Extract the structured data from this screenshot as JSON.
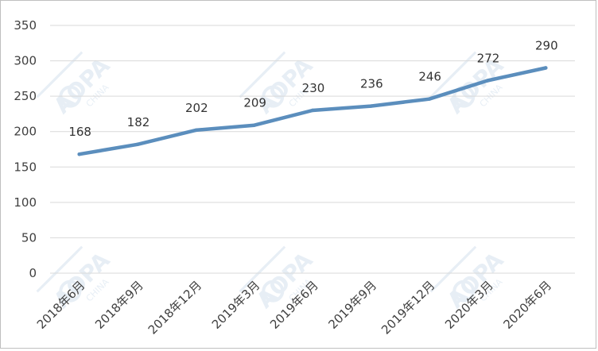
{
  "chart_data": {
    "type": "line",
    "categories": [
      "2018年6月",
      "2018年9月",
      "2018年12月",
      "2019年3月",
      "2019年6月",
      "2019年9月",
      "2019年12月",
      "2020年3月",
      "2020年6月"
    ],
    "series": [
      {
        "values": [
          168,
          182,
          202,
          209,
          230,
          236,
          246,
          272,
          290
        ],
        "color": "#5b8ebd"
      }
    ],
    "title": "",
    "xlabel": "",
    "ylabel": "",
    "ylim": [
      0,
      350
    ],
    "yticks": [
      0,
      50,
      100,
      150,
      200,
      250,
      300,
      350
    ],
    "grid": true,
    "legend": "none",
    "data_labels": true,
    "watermark": "AOPA CHINA"
  }
}
